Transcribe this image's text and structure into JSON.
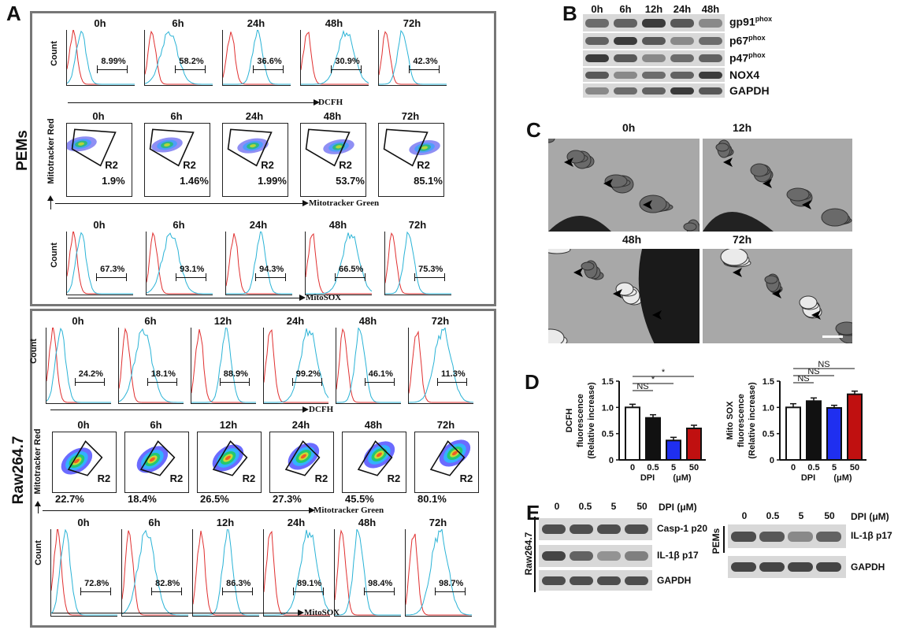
{
  "panels": {
    "A": "A",
    "B": "B",
    "C": "C",
    "D": "D",
    "E": "E"
  },
  "panelA": {
    "pems_label": "PEMs",
    "raw_label": "Raw264.7",
    "pems": {
      "dcfh": {
        "timepoints": [
          "0h",
          "6h",
          "24h",
          "48h",
          "72h"
        ],
        "percents": [
          "8.99%",
          "58.2%",
          "36.6%",
          "30.9%",
          "42.3%"
        ],
        "y_label": "Count",
        "x_label": "DCFH"
      },
      "mitotracker": {
        "timepoints": [
          "0h",
          "6h",
          "24h",
          "48h",
          "72h"
        ],
        "gate": "R2",
        "percents": [
          "1.9%",
          "1.46%",
          "1.99%",
          "53.7%",
          "85.1%"
        ],
        "y_label": "Mitotracker Red",
        "x_label": "Mitotracker Green"
      },
      "mitosox": {
        "timepoints": [
          "0h",
          "6h",
          "24h",
          "48h",
          "72h"
        ],
        "percents": [
          "67.3%",
          "93.1%",
          "94.3%",
          "66.5%",
          "75.3%"
        ],
        "y_label": "Count",
        "x_label": "MitoSOX"
      }
    },
    "raw": {
      "dcfh": {
        "timepoints": [
          "0h",
          "6h",
          "12h",
          "24h",
          "48h",
          "72h"
        ],
        "percents": [
          "24.2%",
          "18.1%",
          "88.9%",
          "99.2%",
          "46.1%",
          "11.3%"
        ],
        "y_label": "Count",
        "x_label": "DCFH"
      },
      "mitotracker": {
        "timepoints": [
          "0h",
          "6h",
          "12h",
          "24h",
          "48h",
          "72h"
        ],
        "gate": "R2",
        "percents": [
          "22.7%",
          "18.4%",
          "26.5%",
          "27.3%",
          "45.5%",
          "80.1%"
        ],
        "y_label": "Mitotracker Red",
        "x_label": "Mitotracker Green"
      },
      "mitosox": {
        "timepoints": [
          "0h",
          "6h",
          "12h",
          "24h",
          "48h",
          "72h"
        ],
        "percents": [
          "72.8%",
          "82.8%",
          "86.3%",
          "89.1%",
          "98.4%",
          "98.7%"
        ],
        "y_label": "Count",
        "x_label": "MitoSOX"
      }
    }
  },
  "panelB": {
    "timepoints": [
      "0h",
      "6h",
      "12h",
      "24h",
      "48h"
    ],
    "rows": [
      {
        "name": "gp91",
        "sup": "phox"
      },
      {
        "name": "p67",
        "sup": "phox"
      },
      {
        "name": "p47",
        "sup": "phox"
      },
      {
        "name": "NOX4",
        "sup": ""
      },
      {
        "name": "GAPDH",
        "sup": ""
      }
    ]
  },
  "panelC": {
    "labels": [
      "0h",
      "12h",
      "48h",
      "72h"
    ]
  },
  "chart_data": [
    {
      "type": "bar",
      "ylabel": "DCFH fluorescence (Relative increase)",
      "ylabel_lines": [
        "DCFH",
        "fluorescence",
        "(Relative increase)"
      ],
      "categories": [
        "0",
        "0.5",
        "5",
        "50"
      ],
      "values": [
        1.0,
        0.8,
        0.37,
        0.6
      ],
      "errors": [
        0.06,
        0.06,
        0.06,
        0.06
      ],
      "colors": [
        "#ffffff",
        "#111111",
        "#1f2ff0",
        "#c01010"
      ],
      "ylim": [
        0,
        1.5
      ],
      "yticks": [
        "0",
        "0.5",
        "1.0",
        "1.5"
      ],
      "xlabel_left": "DPI",
      "xlabel_right": "(μM)",
      "significance": [
        {
          "from": 0,
          "to": 1,
          "label": "NS"
        },
        {
          "from": 0,
          "to": 2,
          "label": "*"
        },
        {
          "from": 0,
          "to": 3,
          "label": "*"
        }
      ]
    },
    {
      "type": "bar",
      "ylabel": "Mito SOX fluorescence (Relative increase)",
      "ylabel_lines": [
        "Mito SOX",
        "fluorescence",
        "(Relative increase)"
      ],
      "categories": [
        "0",
        "0.5",
        "5",
        "50"
      ],
      "values": [
        1.0,
        1.12,
        0.99,
        1.25
      ],
      "errors": [
        0.07,
        0.06,
        0.05,
        0.06
      ],
      "colors": [
        "#ffffff",
        "#111111",
        "#1f2ff0",
        "#c01010"
      ],
      "ylim": [
        0,
        1.5
      ],
      "yticks": [
        "0",
        "0.5",
        "1.0",
        "1.5"
      ],
      "xlabel_left": "DPI",
      "xlabel_right": "(μM)",
      "significance": [
        {
          "from": 0,
          "to": 1,
          "label": "NS"
        },
        {
          "from": 0,
          "to": 2,
          "label": "NS"
        },
        {
          "from": 0,
          "to": 3,
          "label": "NS"
        }
      ]
    }
  ],
  "panelE": {
    "doses": [
      "0",
      "0.5",
      "5",
      "50"
    ],
    "dose_unit": "DPI (μM)",
    "left_cell": "Raw264.7",
    "left_rows": [
      "Casp-1 p20",
      "IL-1β p17",
      "GAPDH"
    ],
    "right_cell": "PEMs",
    "right_rows": [
      "IL-1β p17",
      "GAPDH"
    ]
  }
}
